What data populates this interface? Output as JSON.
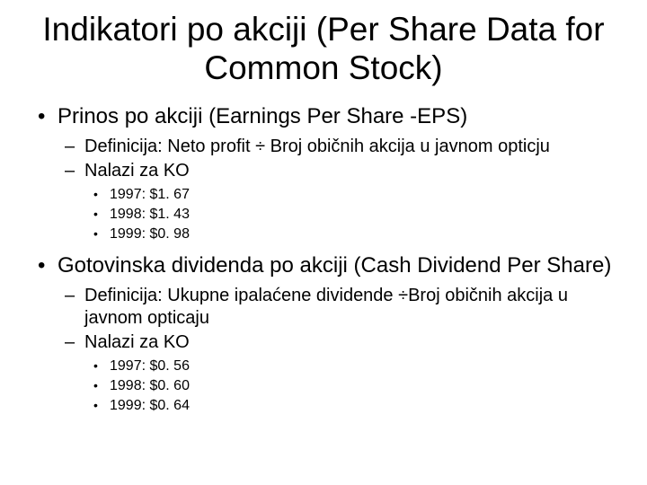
{
  "title": "Indikatori po akciji (Per Share Data for Common Stock)",
  "sections": [
    {
      "heading": "Prinos po akciji (Earnings Per Share -EPS)",
      "subs": [
        {
          "text": "Definicija: Neto profit ÷ Broj običnih akcija u javnom opticju"
        },
        {
          "text": "Nalazi za KO",
          "items": [
            "1997: $1. 67",
            "1998: $1. 43",
            "1999: $0. 98"
          ]
        }
      ]
    },
    {
      "heading": "Gotovinska dividenda po akciji (Cash Dividend Per Share)",
      "subs": [
        {
          "text": "Definicija: Ukupne ipalaćene dividende ÷Broj običnih akcija u javnom opticaju"
        },
        {
          "text": "Nalazi za KO",
          "items": [
            "1997: $0. 56",
            "1998: $0. 60",
            "1999: $0. 64"
          ]
        }
      ]
    }
  ]
}
